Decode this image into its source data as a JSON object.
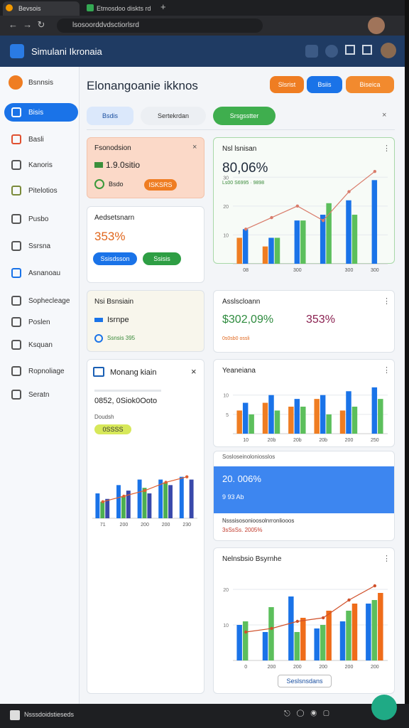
{
  "browser": {
    "tabs": [
      "Bevsois",
      "Etmosdoo diskts rd"
    ],
    "url": "lsosoorddvdsctiorlsrd"
  },
  "app": {
    "title": "Simulani Ikronaia"
  },
  "sidebar": [
    "Bsnnsis",
    "Bisis",
    "Basli",
    "Kanoris",
    "Pitelotios",
    "Pusbo",
    "Ssrsna",
    "Asnanoau",
    "Sophecleage",
    "Poslen",
    "Ksquan",
    "Ropnoliage",
    "Seratn"
  ],
  "main": {
    "title": "Elonangoanie ikknos",
    "buttons": [
      "Slsrist",
      "Bsiis",
      "Biseica"
    ],
    "tabs": [
      "Bsdis",
      "Sertekrdan",
      "Srsgsstter"
    ]
  },
  "cards": {
    "a": {
      "title": "Fsonodsion",
      "value": "1.9.0sitio",
      "chip1": "Bsdo",
      "chip2": "ISKSRS"
    },
    "b": {
      "title": "Aedsetsnarn",
      "value": "353%",
      "pill1": "Ssisdsson",
      "pill2": "Ssisis"
    },
    "c": {
      "title": "Nsi Bsnsiain",
      "value": "Isrnpe",
      "note": "Ssnsis 395"
    },
    "d": {
      "title": "Monang kiain",
      "value": "0852, 0Siok0Ooto",
      "sub": "Doudsh",
      "chip": "0SSSS",
      "chart": {
        "ylim": [
          0,
          18
        ],
        "categories": [
          "71",
          "200",
          "200",
          "200",
          "230"
        ],
        "series": [
          {
            "color": "#1a73e8",
            "values": [
              9,
              12,
              14,
              14,
              15
            ]
          },
          {
            "color": "#4caf50",
            "values": [
              6,
              8,
              11,
              13,
              null
            ]
          },
          {
            "color": "#3949ab",
            "values": [
              7,
              10,
              9,
              12,
              14
            ]
          }
        ],
        "line": {
          "color": "#e06030",
          "values": [
            6,
            8,
            10,
            13,
            15
          ]
        }
      }
    },
    "e": {
      "title": "Nsl lsnisan",
      "value": "80,06%",
      "sub": "Ls00 S6995 · 9898",
      "chart": {
        "ylim": [
          0,
          35
        ],
        "yticks": [
          10,
          20,
          30
        ],
        "categories": [
          "08",
          null,
          "300",
          null,
          "300",
          "300"
        ],
        "series": [
          {
            "color": "#ef7d22",
            "values": [
              9,
              6,
              null,
              null,
              null,
              null
            ]
          },
          {
            "color": "#1a73e8",
            "values": [
              12,
              9,
              15,
              17,
              22,
              29
            ]
          },
          {
            "color": "#5cbf5c",
            "values": [
              null,
              9,
              15,
              21,
              17,
              null
            ]
          }
        ],
        "line": {
          "color": "#d97b6a",
          "values": [
            12,
            16,
            20,
            15,
            25,
            32
          ]
        }
      }
    },
    "f": {
      "title": "Asslscloann",
      "value": "$302,09%",
      "value2": "353%",
      "sub": "0s0sb0 ossli"
    },
    "g": {
      "title": "Yeaneiana",
      "chart": {
        "ylim": [
          0,
          14
        ],
        "yticks": [
          5,
          10
        ],
        "categories": [
          "10",
          "20b",
          "20b",
          "20b",
          "200",
          "250"
        ],
        "series": [
          {
            "color": "#ef7d22",
            "values": [
              6,
              8,
              7,
              9,
              6,
              null
            ]
          },
          {
            "color": "#1a73e8",
            "values": [
              8,
              10,
              9,
              10,
              11,
              12
            ]
          },
          {
            "color": "#5cbf5c",
            "values": [
              5,
              6,
              7,
              5,
              7,
              9
            ]
          }
        ]
      }
    },
    "h": {
      "strip": "Sosloseinoloniosslos",
      "value": "20. 006%",
      "sub": "9 93 Ab",
      "note": "Nsssisosonioosolnrronliooos",
      "note2": "3sSsSs. 2005%"
    },
    "i": {
      "title": "Nelnsbsio Bsyrnhe",
      "button": "Seslsnsdans",
      "chart": {
        "ylim": [
          0,
          25
        ],
        "yticks": [
          10,
          20
        ],
        "categories": [
          "0",
          "200",
          "200",
          "200",
          "200",
          "200"
        ],
        "series": [
          {
            "color": "#1a73e8",
            "values": [
              10,
              8,
              18,
              9,
              11,
              16
            ]
          },
          {
            "color": "#5cbf5c",
            "values": [
              11,
              15,
              8,
              10,
              14,
              17
            ]
          },
          {
            "color": "#ef6c1a",
            "values": [
              null,
              null,
              12,
              14,
              16,
              19
            ]
          }
        ],
        "line": {
          "color": "#d0502a",
          "values": [
            8,
            9,
            11,
            12,
            17,
            21
          ]
        }
      }
    }
  },
  "footer": {
    "text": "Nsssdoidstieseds"
  }
}
